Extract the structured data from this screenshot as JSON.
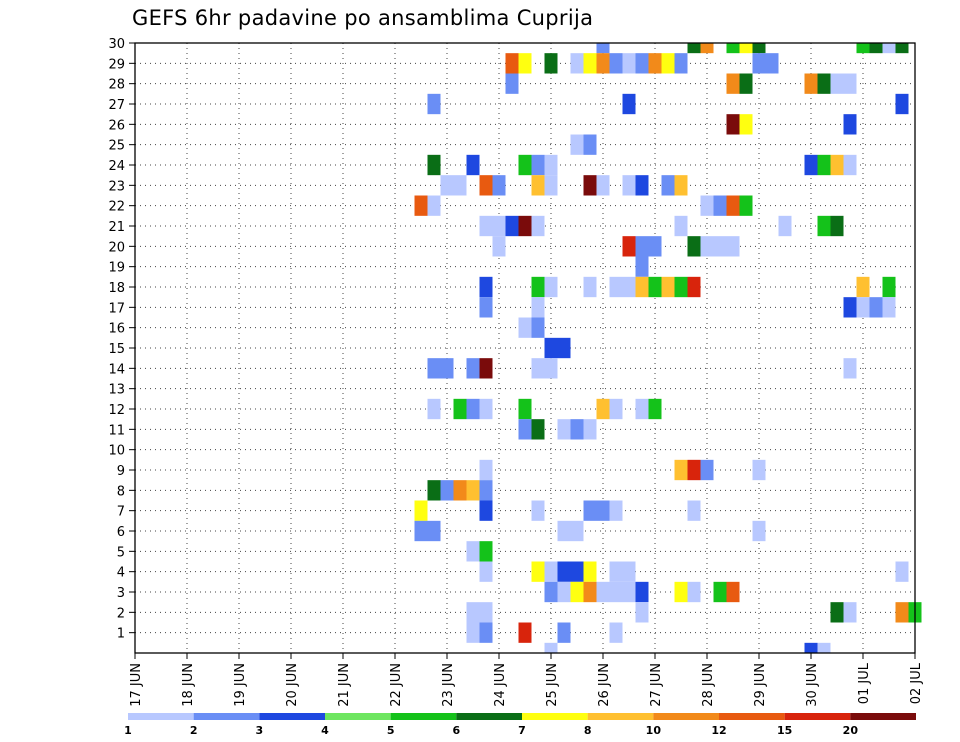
{
  "chart_data": {
    "type": "heatmap",
    "title": "GEFS 6hr padavine po ansamblima Cuprija",
    "xlabel": "",
    "ylabel": "",
    "x_tick_labels": [
      "17 JUN",
      "18 JUN",
      "19 JUN",
      "20 JUN",
      "21 JUN",
      "22 JUN",
      "23 JUN",
      "24 JUN",
      "25 JUN",
      "26 JUN",
      "27 JUN",
      "28 JUN",
      "29 JUN",
      "30 JUN",
      "01 JUL",
      "02 JUL"
    ],
    "x_range_days": [
      0,
      15
    ],
    "y_tick_labels": [
      "1",
      "2",
      "3",
      "4",
      "5",
      "6",
      "7",
      "8",
      "9",
      "10",
      "11",
      "12",
      "13",
      "14",
      "15",
      "16",
      "17",
      "18",
      "19",
      "20",
      "21",
      "22",
      "23",
      "24",
      "25",
      "26",
      "27",
      "28",
      "29",
      "30"
    ],
    "y_range": [
      0,
      30
    ],
    "grid": true,
    "colorbar": {
      "position": "bottom",
      "levels": [
        1,
        2,
        3,
        4,
        5,
        6,
        7,
        8,
        10,
        12,
        15,
        20
      ],
      "labels": [
        "1",
        "2",
        "3",
        "4",
        "5",
        "6",
        "7",
        "8",
        "10",
        "12",
        "15",
        "20"
      ],
      "colors": [
        "#b8c8ff",
        "#6a8ef5",
        "#1e48e0",
        "#6ee660",
        "#14c21a",
        "#0a6e16",
        "#ffff10",
        "#ffc030",
        "#f28a1a",
        "#e85a10",
        "#d8240c",
        "#7a0b0b"
      ]
    },
    "cells": [
      {
        "member": 30,
        "time_days": 9.0,
        "value": 2
      },
      {
        "member": 30,
        "time_days": 10.75,
        "value": 6
      },
      {
        "member": 30,
        "time_days": 11.0,
        "value": 10
      },
      {
        "member": 30,
        "time_days": 11.5,
        "value": 5
      },
      {
        "member": 30,
        "time_days": 11.75,
        "value": 7
      },
      {
        "member": 30,
        "time_days": 12.0,
        "value": 6
      },
      {
        "member": 30,
        "time_days": 14.0,
        "value": 5
      },
      {
        "member": 30,
        "time_days": 14.25,
        "value": 6
      },
      {
        "member": 30,
        "time_days": 14.5,
        "value": 1
      },
      {
        "member": 30,
        "time_days": 14.75,
        "value": 6
      },
      {
        "member": 29,
        "time_days": 7.25,
        "value": 12
      },
      {
        "member": 29,
        "time_days": 7.5,
        "value": 7
      },
      {
        "member": 29,
        "time_days": 8.0,
        "value": 6
      },
      {
        "member": 29,
        "time_days": 8.5,
        "value": 1
      },
      {
        "member": 29,
        "time_days": 8.75,
        "value": 7
      },
      {
        "member": 29,
        "time_days": 9.0,
        "value": 10
      },
      {
        "member": 29,
        "time_days": 9.25,
        "value": 2
      },
      {
        "member": 29,
        "time_days": 9.5,
        "value": 1
      },
      {
        "member": 29,
        "time_days": 9.75,
        "value": 2
      },
      {
        "member": 29,
        "time_days": 10.0,
        "value": 10
      },
      {
        "member": 29,
        "time_days": 10.25,
        "value": 7
      },
      {
        "member": 29,
        "time_days": 10.5,
        "value": 2
      },
      {
        "member": 29,
        "time_days": 12.0,
        "value": 2
      },
      {
        "member": 29,
        "time_days": 12.25,
        "value": 2
      },
      {
        "member": 28,
        "time_days": 7.25,
        "value": 2
      },
      {
        "member": 28,
        "time_days": 11.5,
        "value": 10
      },
      {
        "member": 28,
        "time_days": 11.75,
        "value": 6
      },
      {
        "member": 28,
        "time_days": 13.0,
        "value": 10
      },
      {
        "member": 28,
        "time_days": 13.25,
        "value": 6
      },
      {
        "member": 28,
        "time_days": 13.5,
        "value": 1
      },
      {
        "member": 28,
        "time_days": 13.75,
        "value": 1
      },
      {
        "member": 27,
        "time_days": 5.75,
        "value": 2
      },
      {
        "member": 27,
        "time_days": 9.5,
        "value": 3
      },
      {
        "member": 27,
        "time_days": 14.75,
        "value": 3
      },
      {
        "member": 26,
        "time_days": 11.5,
        "value": 20
      },
      {
        "member": 26,
        "time_days": 11.75,
        "value": 7
      },
      {
        "member": 26,
        "time_days": 13.75,
        "value": 3
      },
      {
        "member": 25,
        "time_days": 8.5,
        "value": 1
      },
      {
        "member": 25,
        "time_days": 8.75,
        "value": 2
      },
      {
        "member": 24,
        "time_days": 5.75,
        "value": 6
      },
      {
        "member": 24,
        "time_days": 6.5,
        "value": 3
      },
      {
        "member": 24,
        "time_days": 7.5,
        "value": 5
      },
      {
        "member": 24,
        "time_days": 7.75,
        "value": 2
      },
      {
        "member": 24,
        "time_days": 8.0,
        "value": 1
      },
      {
        "member": 24,
        "time_days": 13.0,
        "value": 3
      },
      {
        "member": 24,
        "time_days": 13.25,
        "value": 5
      },
      {
        "member": 24,
        "time_days": 13.5,
        "value": 8
      },
      {
        "member": 24,
        "time_days": 13.75,
        "value": 1
      },
      {
        "member": 23,
        "time_days": 6.0,
        "value": 1
      },
      {
        "member": 23,
        "time_days": 6.25,
        "value": 1
      },
      {
        "member": 23,
        "time_days": 6.75,
        "value": 12
      },
      {
        "member": 23,
        "time_days": 7.0,
        "value": 2
      },
      {
        "member": 23,
        "time_days": 7.75,
        "value": 8
      },
      {
        "member": 23,
        "time_days": 8.0,
        "value": 1
      },
      {
        "member": 23,
        "time_days": 8.75,
        "value": 20
      },
      {
        "member": 23,
        "time_days": 9.0,
        "value": 1
      },
      {
        "member": 23,
        "time_days": 9.5,
        "value": 1
      },
      {
        "member": 23,
        "time_days": 9.75,
        "value": 3
      },
      {
        "member": 23,
        "time_days": 10.25,
        "value": 2
      },
      {
        "member": 23,
        "time_days": 10.5,
        "value": 8
      },
      {
        "member": 22,
        "time_days": 5.5,
        "value": 12
      },
      {
        "member": 22,
        "time_days": 5.75,
        "value": 1
      },
      {
        "member": 22,
        "time_days": 11.0,
        "value": 1
      },
      {
        "member": 22,
        "time_days": 11.25,
        "value": 2
      },
      {
        "member": 22,
        "time_days": 11.5,
        "value": 12
      },
      {
        "member": 22,
        "time_days": 11.75,
        "value": 5
      },
      {
        "member": 21,
        "time_days": 6.75,
        "value": 1
      },
      {
        "member": 21,
        "time_days": 7.0,
        "value": 1
      },
      {
        "member": 21,
        "time_days": 7.25,
        "value": 3
      },
      {
        "member": 21,
        "time_days": 7.5,
        "value": 20
      },
      {
        "member": 21,
        "time_days": 7.75,
        "value": 1
      },
      {
        "member": 21,
        "time_days": 10.5,
        "value": 1
      },
      {
        "member": 21,
        "time_days": 12.5,
        "value": 1
      },
      {
        "member": 21,
        "time_days": 13.25,
        "value": 5
      },
      {
        "member": 21,
        "time_days": 13.5,
        "value": 6
      },
      {
        "member": 20,
        "time_days": 7.0,
        "value": 1
      },
      {
        "member": 20,
        "time_days": 9.5,
        "value": 15
      },
      {
        "member": 20,
        "time_days": 9.75,
        "value": 2
      },
      {
        "member": 20,
        "time_days": 10.0,
        "value": 2
      },
      {
        "member": 20,
        "time_days": 10.75,
        "value": 6
      },
      {
        "member": 20,
        "time_days": 11.0,
        "value": 1
      },
      {
        "member": 20,
        "time_days": 11.25,
        "value": 1
      },
      {
        "member": 20,
        "time_days": 11.5,
        "value": 1
      },
      {
        "member": 19,
        "time_days": 9.75,
        "value": 2
      },
      {
        "member": 18,
        "time_days": 6.75,
        "value": 3
      },
      {
        "member": 18,
        "time_days": 7.75,
        "value": 5
      },
      {
        "member": 18,
        "time_days": 8.0,
        "value": 1
      },
      {
        "member": 18,
        "time_days": 8.75,
        "value": 1
      },
      {
        "member": 18,
        "time_days": 9.25,
        "value": 1
      },
      {
        "member": 18,
        "time_days": 9.5,
        "value": 1
      },
      {
        "member": 18,
        "time_days": 9.75,
        "value": 8
      },
      {
        "member": 18,
        "time_days": 10.0,
        "value": 5
      },
      {
        "member": 18,
        "time_days": 10.25,
        "value": 8
      },
      {
        "member": 18,
        "time_days": 10.5,
        "value": 5
      },
      {
        "member": 18,
        "time_days": 10.75,
        "value": 15
      },
      {
        "member": 18,
        "time_days": 14.0,
        "value": 8
      },
      {
        "member": 18,
        "time_days": 14.5,
        "value": 5
      },
      {
        "member": 17,
        "time_days": 6.75,
        "value": 2
      },
      {
        "member": 17,
        "time_days": 7.75,
        "value": 1
      },
      {
        "member": 17,
        "time_days": 13.75,
        "value": 3
      },
      {
        "member": 17,
        "time_days": 14.0,
        "value": 1
      },
      {
        "member": 17,
        "time_days": 14.25,
        "value": 2
      },
      {
        "member": 17,
        "time_days": 14.5,
        "value": 1
      },
      {
        "member": 16,
        "time_days": 7.5,
        "value": 1
      },
      {
        "member": 16,
        "time_days": 7.75,
        "value": 2
      },
      {
        "member": 15,
        "time_days": 8.0,
        "value": 3
      },
      {
        "member": 15,
        "time_days": 8.25,
        "value": 3
      },
      {
        "member": 14,
        "time_days": 5.75,
        "value": 2
      },
      {
        "member": 14,
        "time_days": 6.0,
        "value": 2
      },
      {
        "member": 14,
        "time_days": 6.5,
        "value": 2
      },
      {
        "member": 14,
        "time_days": 6.75,
        "value": 20
      },
      {
        "member": 14,
        "time_days": 7.75,
        "value": 1
      },
      {
        "member": 14,
        "time_days": 8.0,
        "value": 1
      },
      {
        "member": 14,
        "time_days": 13.75,
        "value": 1
      },
      {
        "member": 12,
        "time_days": 5.75,
        "value": 1
      },
      {
        "member": 12,
        "time_days": 6.25,
        "value": 5
      },
      {
        "member": 12,
        "time_days": 6.5,
        "value": 2
      },
      {
        "member": 12,
        "time_days": 6.75,
        "value": 1
      },
      {
        "member": 12,
        "time_days": 7.5,
        "value": 5
      },
      {
        "member": 12,
        "time_days": 9.0,
        "value": 8
      },
      {
        "member": 12,
        "time_days": 9.25,
        "value": 1
      },
      {
        "member": 12,
        "time_days": 9.75,
        "value": 1
      },
      {
        "member": 12,
        "time_days": 10.0,
        "value": 5
      },
      {
        "member": 11,
        "time_days": 7.5,
        "value": 2
      },
      {
        "member": 11,
        "time_days": 7.75,
        "value": 6
      },
      {
        "member": 11,
        "time_days": 8.25,
        "value": 1
      },
      {
        "member": 11,
        "time_days": 8.5,
        "value": 2
      },
      {
        "member": 11,
        "time_days": 8.75,
        "value": 1
      },
      {
        "member": 9,
        "time_days": 6.75,
        "value": 1
      },
      {
        "member": 9,
        "time_days": 10.5,
        "value": 8
      },
      {
        "member": 9,
        "time_days": 10.75,
        "value": 15
      },
      {
        "member": 9,
        "time_days": 11.0,
        "value": 2
      },
      {
        "member": 9,
        "time_days": 12.0,
        "value": 1
      },
      {
        "member": 8,
        "time_days": 5.75,
        "value": 6
      },
      {
        "member": 8,
        "time_days": 6.0,
        "value": 2
      },
      {
        "member": 8,
        "time_days": 6.25,
        "value": 10
      },
      {
        "member": 8,
        "time_days": 6.5,
        "value": 8
      },
      {
        "member": 8,
        "time_days": 6.75,
        "value": 2
      },
      {
        "member": 7,
        "time_days": 5.5,
        "value": 7
      },
      {
        "member": 7,
        "time_days": 6.75,
        "value": 3
      },
      {
        "member": 7,
        "time_days": 7.75,
        "value": 1
      },
      {
        "member": 7,
        "time_days": 8.75,
        "value": 2
      },
      {
        "member": 7,
        "time_days": 9.0,
        "value": 2
      },
      {
        "member": 7,
        "time_days": 9.25,
        "value": 1
      },
      {
        "member": 7,
        "time_days": 10.75,
        "value": 1
      },
      {
        "member": 6,
        "time_days": 5.5,
        "value": 2
      },
      {
        "member": 6,
        "time_days": 5.75,
        "value": 2
      },
      {
        "member": 6,
        "time_days": 8.25,
        "value": 1
      },
      {
        "member": 6,
        "time_days": 8.5,
        "value": 1
      },
      {
        "member": 6,
        "time_days": 12.0,
        "value": 1
      },
      {
        "member": 5,
        "time_days": 6.5,
        "value": 1
      },
      {
        "member": 5,
        "time_days": 6.75,
        "value": 5
      },
      {
        "member": 4,
        "time_days": 6.75,
        "value": 1
      },
      {
        "member": 4,
        "time_days": 7.75,
        "value": 7
      },
      {
        "member": 4,
        "time_days": 8.0,
        "value": 1
      },
      {
        "member": 4,
        "time_days": 8.25,
        "value": 3
      },
      {
        "member": 4,
        "time_days": 8.5,
        "value": 3
      },
      {
        "member": 4,
        "time_days": 8.75,
        "value": 7
      },
      {
        "member": 4,
        "time_days": 9.25,
        "value": 1
      },
      {
        "member": 4,
        "time_days": 9.5,
        "value": 1
      },
      {
        "member": 4,
        "time_days": 14.75,
        "value": 1
      },
      {
        "member": 3,
        "time_days": 8.0,
        "value": 2
      },
      {
        "member": 3,
        "time_days": 8.25,
        "value": 1
      },
      {
        "member": 3,
        "time_days": 8.5,
        "value": 7
      },
      {
        "member": 3,
        "time_days": 8.75,
        "value": 10
      },
      {
        "member": 3,
        "time_days": 9.0,
        "value": 1
      },
      {
        "member": 3,
        "time_days": 9.25,
        "value": 1
      },
      {
        "member": 3,
        "time_days": 9.5,
        "value": 1
      },
      {
        "member": 3,
        "time_days": 9.75,
        "value": 3
      },
      {
        "member": 3,
        "time_days": 10.5,
        "value": 7
      },
      {
        "member": 3,
        "time_days": 10.75,
        "value": 1
      },
      {
        "member": 3,
        "time_days": 11.25,
        "value": 5
      },
      {
        "member": 3,
        "time_days": 11.5,
        "value": 12
      },
      {
        "member": 2,
        "time_days": 6.5,
        "value": 1
      },
      {
        "member": 2,
        "time_days": 6.75,
        "value": 1
      },
      {
        "member": 2,
        "time_days": 9.75,
        "value": 1
      },
      {
        "member": 2,
        "time_days": 13.5,
        "value": 6
      },
      {
        "member": 2,
        "time_days": 13.75,
        "value": 1
      },
      {
        "member": 2,
        "time_days": 14.75,
        "value": 10
      },
      {
        "member": 2,
        "time_days": 15.0,
        "value": 5
      },
      {
        "member": 1,
        "time_days": 6.5,
        "value": 1
      },
      {
        "member": 1,
        "time_days": 6.75,
        "value": 2
      },
      {
        "member": 1,
        "time_days": 7.5,
        "value": 15
      },
      {
        "member": 1,
        "time_days": 8.25,
        "value": 2
      },
      {
        "member": 1,
        "time_days": 9.25,
        "value": 1
      },
      {
        "member": 0,
        "time_days": 8.0,
        "value": 1
      },
      {
        "member": 0,
        "time_days": 13.0,
        "value": 3
      },
      {
        "member": 0,
        "time_days": 13.25,
        "value": 1
      }
    ]
  }
}
